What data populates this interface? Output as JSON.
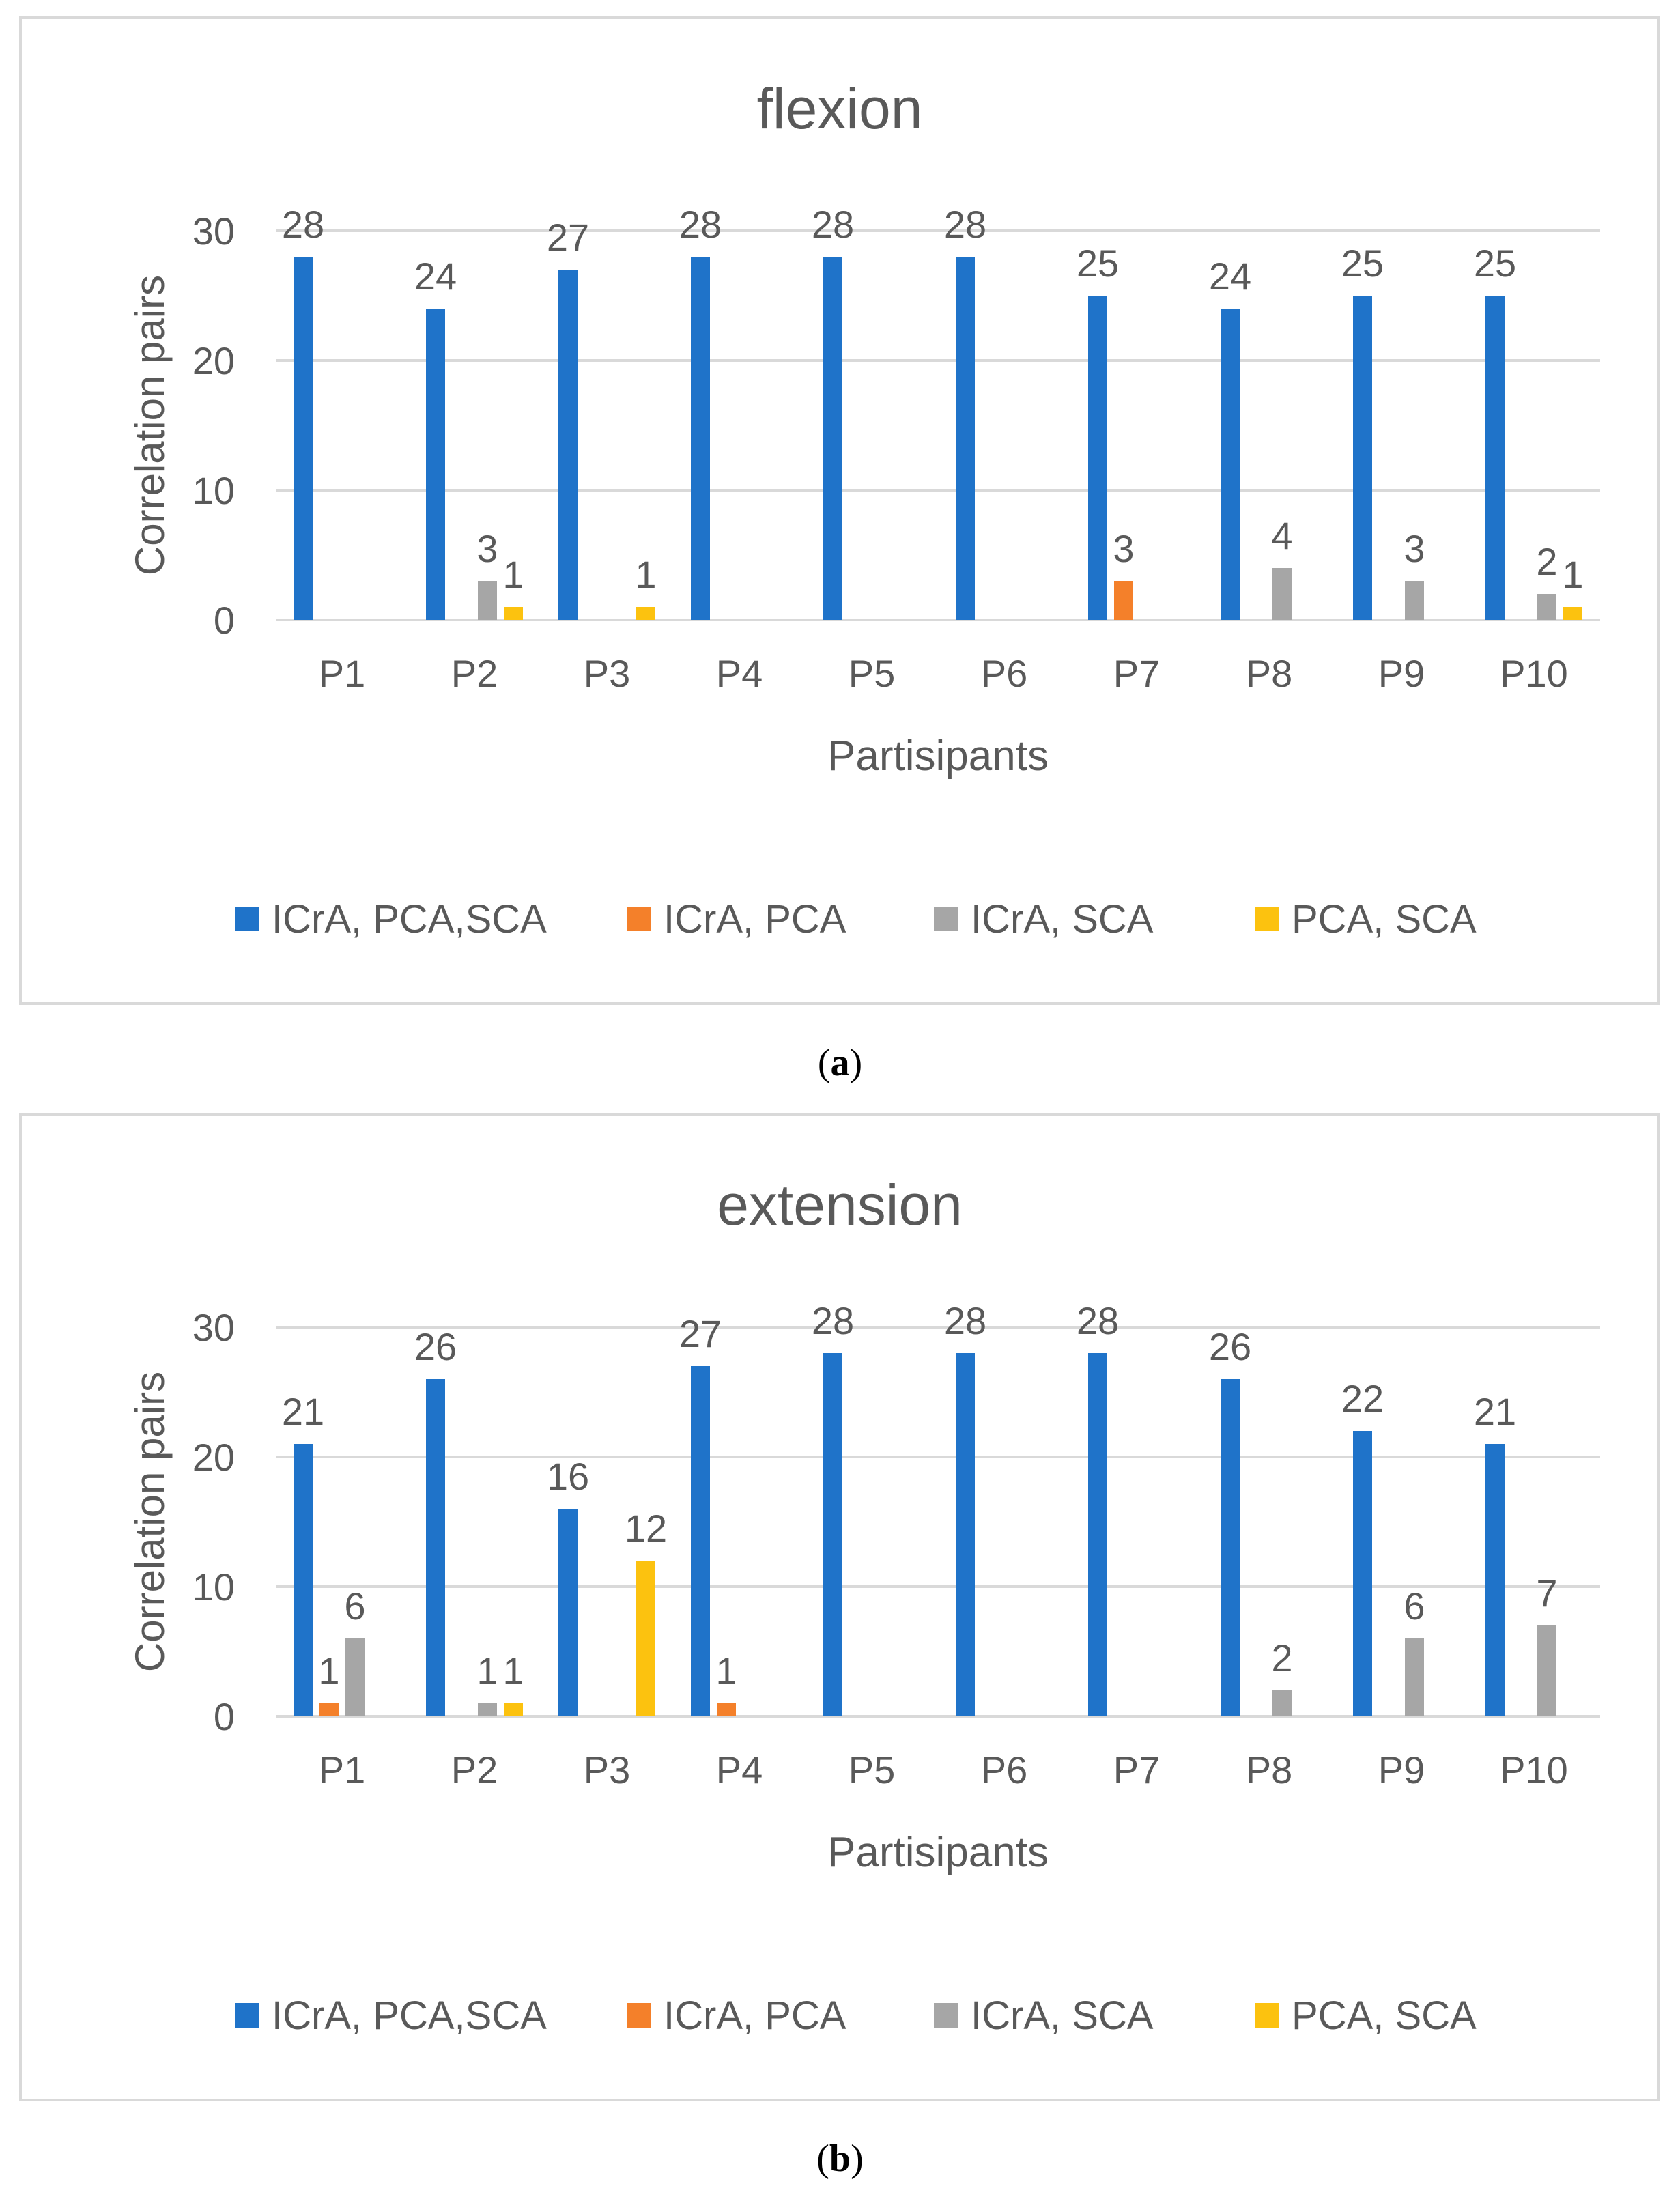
{
  "series_names": [
    "ICrA, PCA,SCA",
    "ICrA, PCA",
    "ICrA, SCA",
    "PCA, SCA"
  ],
  "colors": [
    "#1f73c9",
    "#f4802a",
    "#a6a6a6",
    "#fcc20f"
  ],
  "captions": {
    "a": "a",
    "b": "b"
  },
  "chart_data": [
    {
      "type": "bar",
      "title": "flexion",
      "xlabel": "Partisipants",
      "ylabel": "Correlation pairs",
      "ylim": [
        0,
        30
      ],
      "yticks": [
        0,
        10,
        20,
        30
      ],
      "grid": true,
      "legend": "bottom",
      "categories": [
        "P1",
        "P2",
        "P3",
        "P4",
        "P5",
        "P6",
        "P7",
        "P8",
        "P9",
        "P10"
      ],
      "series": [
        {
          "name": "ICrA, PCA,SCA",
          "values": [
            28,
            24,
            27,
            28,
            28,
            28,
            25,
            24,
            25,
            25
          ]
        },
        {
          "name": "ICrA, PCA",
          "values": [
            0,
            0,
            0,
            0,
            0,
            0,
            3,
            0,
            0,
            0
          ]
        },
        {
          "name": "ICrA, SCA",
          "values": [
            0,
            3,
            0,
            0,
            0,
            0,
            0,
            4,
            3,
            2
          ]
        },
        {
          "name": "PCA, SCA",
          "values": [
            0,
            1,
            1,
            0,
            0,
            0,
            0,
            0,
            0,
            1
          ]
        }
      ]
    },
    {
      "type": "bar",
      "title": "extension",
      "xlabel": "Partisipants",
      "ylabel": "Correlation pairs",
      "ylim": [
        0,
        30
      ],
      "yticks": [
        0,
        10,
        20,
        30
      ],
      "grid": true,
      "legend": "bottom",
      "categories": [
        "P1",
        "P2",
        "P3",
        "P4",
        "P5",
        "P6",
        "P7",
        "P8",
        "P9",
        "P10"
      ],
      "series": [
        {
          "name": "ICrA, PCA,SCA",
          "values": [
            21,
            26,
            16,
            27,
            28,
            28,
            28,
            26,
            22,
            21
          ]
        },
        {
          "name": "ICrA, PCA",
          "values": [
            1,
            0,
            0,
            1,
            0,
            0,
            0,
            0,
            0,
            0
          ]
        },
        {
          "name": "ICrA, SCA",
          "values": [
            6,
            1,
            0,
            0,
            0,
            0,
            0,
            2,
            6,
            7
          ]
        },
        {
          "name": "PCA, SCA",
          "values": [
            0,
            1,
            12,
            0,
            0,
            0,
            0,
            0,
            0,
            0
          ]
        }
      ]
    }
  ]
}
